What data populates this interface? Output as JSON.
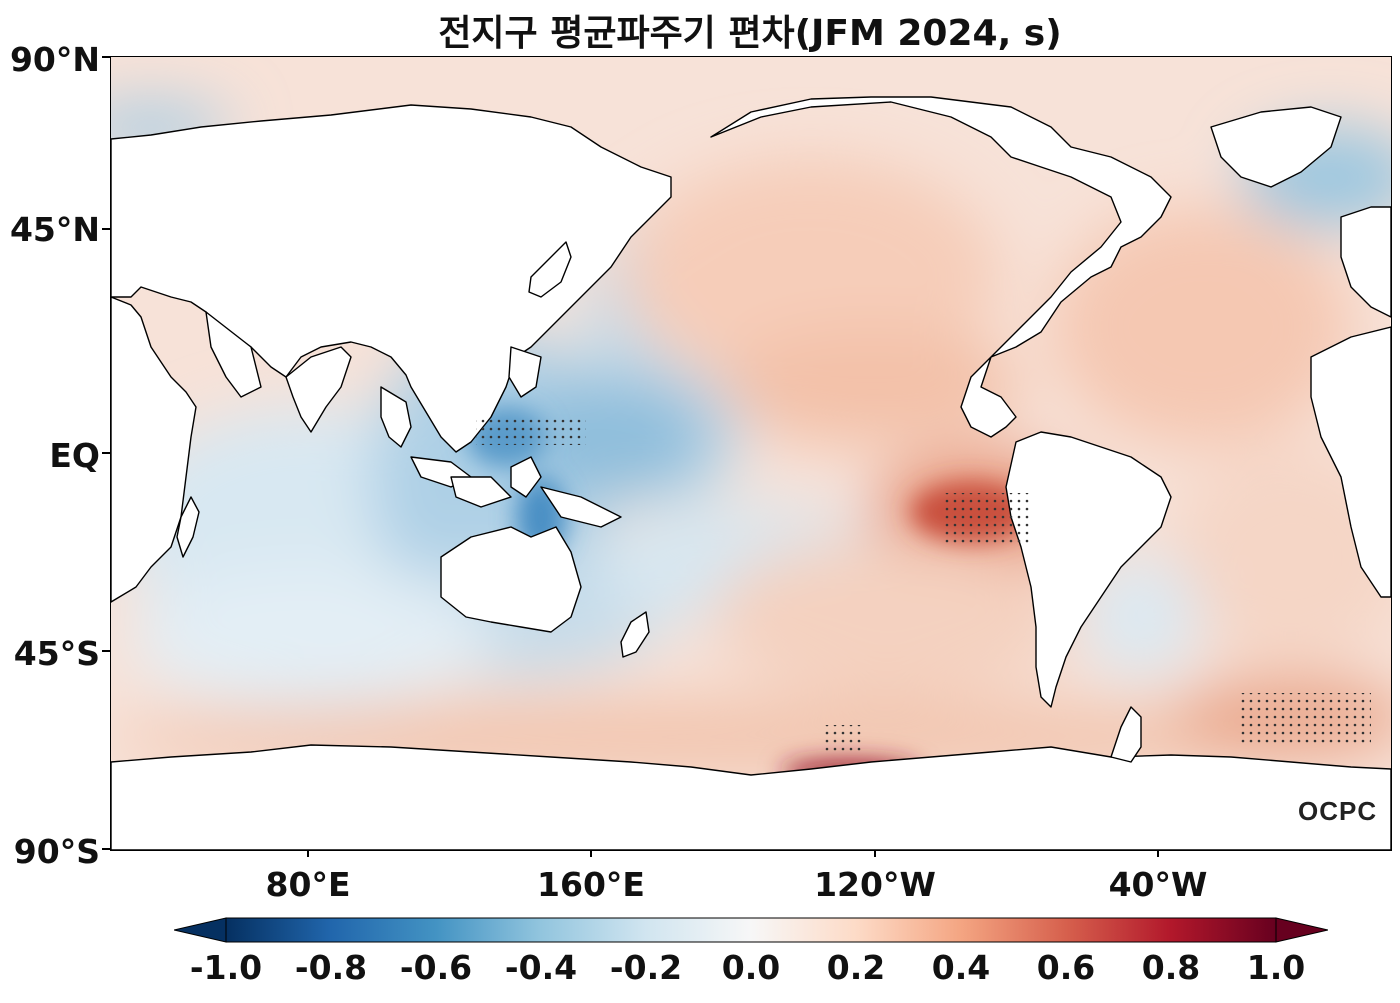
{
  "title": "전지구 평균파주기 편차(JFM 2024, s)",
  "lat_labels": [
    "90°N",
    "45°N",
    "EQ",
    "45°S",
    "90°S"
  ],
  "lon_labels": [
    "80°E",
    "160°E",
    "120°W",
    "40°W"
  ],
  "colorbar": {
    "ticks": [
      "-1.0",
      "-0.8",
      "-0.6",
      "-0.4",
      "-0.2",
      "0.0",
      "0.2",
      "0.4",
      "0.6",
      "0.8",
      "1.0"
    ],
    "colormap": [
      "#053061",
      "#2166ac",
      "#4393c3",
      "#92c5de",
      "#d1e5f0",
      "#f7f7f7",
      "#fddbc7",
      "#f4a582",
      "#d6604d",
      "#b2182b",
      "#67001f"
    ],
    "min": -1.0,
    "max": 1.0
  },
  "logo": "OCPC",
  "colors": {
    "land": "#ffffff",
    "coast": "#000000",
    "stipple": "#333333"
  }
}
